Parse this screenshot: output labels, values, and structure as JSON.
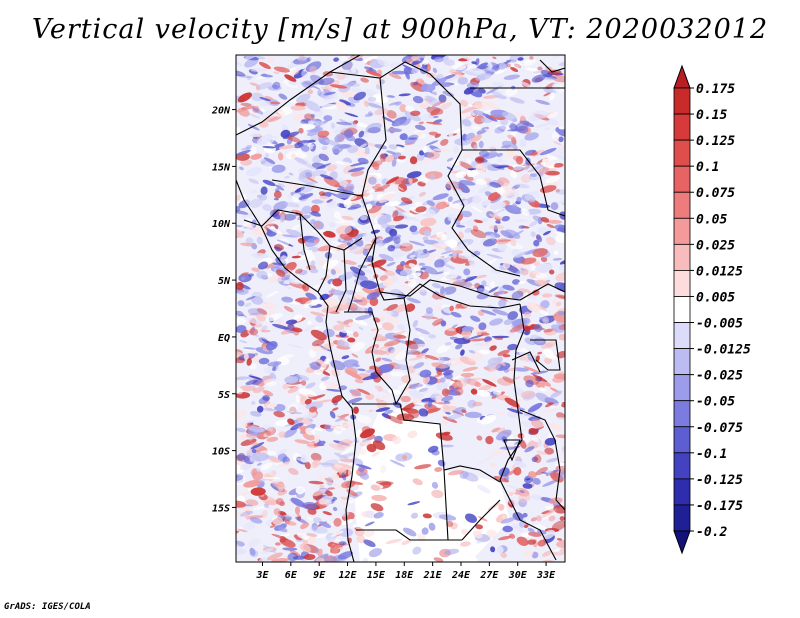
{
  "chart_data": {
    "type": "heatmap",
    "title": "Vertical velocity [m/s] at 900hPa, VT: 2020032012",
    "variable": "Vertical velocity",
    "units": "m/s",
    "level": "900hPa",
    "valid_time": "2020032012",
    "x_ticks": [
      {
        "value": 3,
        "label": "3E"
      },
      {
        "value": 6,
        "label": "6E"
      },
      {
        "value": 9,
        "label": "9E"
      },
      {
        "value": 12,
        "label": "12E"
      },
      {
        "value": 15,
        "label": "15E"
      },
      {
        "value": 18,
        "label": "18E"
      },
      {
        "value": 21,
        "label": "21E"
      },
      {
        "value": 24,
        "label": "24E"
      },
      {
        "value": 27,
        "label": "27E"
      },
      {
        "value": 30,
        "label": "30E"
      },
      {
        "value": 33,
        "label": "33E"
      }
    ],
    "y_ticks": [
      {
        "value": 20,
        "label": "20N"
      },
      {
        "value": 15,
        "label": "15N"
      },
      {
        "value": 10,
        "label": "10N"
      },
      {
        "value": 5,
        "label": "5N"
      },
      {
        "value": 0,
        "label": "EQ"
      },
      {
        "value": -5,
        "label": "5S"
      },
      {
        "value": -10,
        "label": "10S"
      },
      {
        "value": -15,
        "label": "15S"
      }
    ],
    "xlim": [
      0.2,
      35
    ],
    "ylim": [
      -19.8,
      24.8
    ],
    "colorbar": {
      "levels": [
        "0.175",
        "0.15",
        "0.125",
        "0.1",
        "0.075",
        "0.05",
        "0.025",
        "0.0125",
        "0.005",
        "-0.005",
        "-0.0125",
        "-0.025",
        "-0.05",
        "-0.075",
        "-0.1",
        "-0.125",
        "-0.175",
        "-0.2"
      ],
      "colors": [
        "#b81e24",
        "#c92b2b",
        "#d63a3a",
        "#e04d4d",
        "#e86464",
        "#ef7c7c",
        "#f49a9a",
        "#f8bcbc",
        "#fcdcdc",
        "#ffffff",
        "#dcdcfa",
        "#bcbcf3",
        "#9c9ceb",
        "#7c7ce0",
        "#5e5ed3",
        "#4343c2",
        "#2d2dae",
        "#1f1f96",
        "#12127a"
      ]
    }
  },
  "footer": "GrADS: IGES/COLA"
}
